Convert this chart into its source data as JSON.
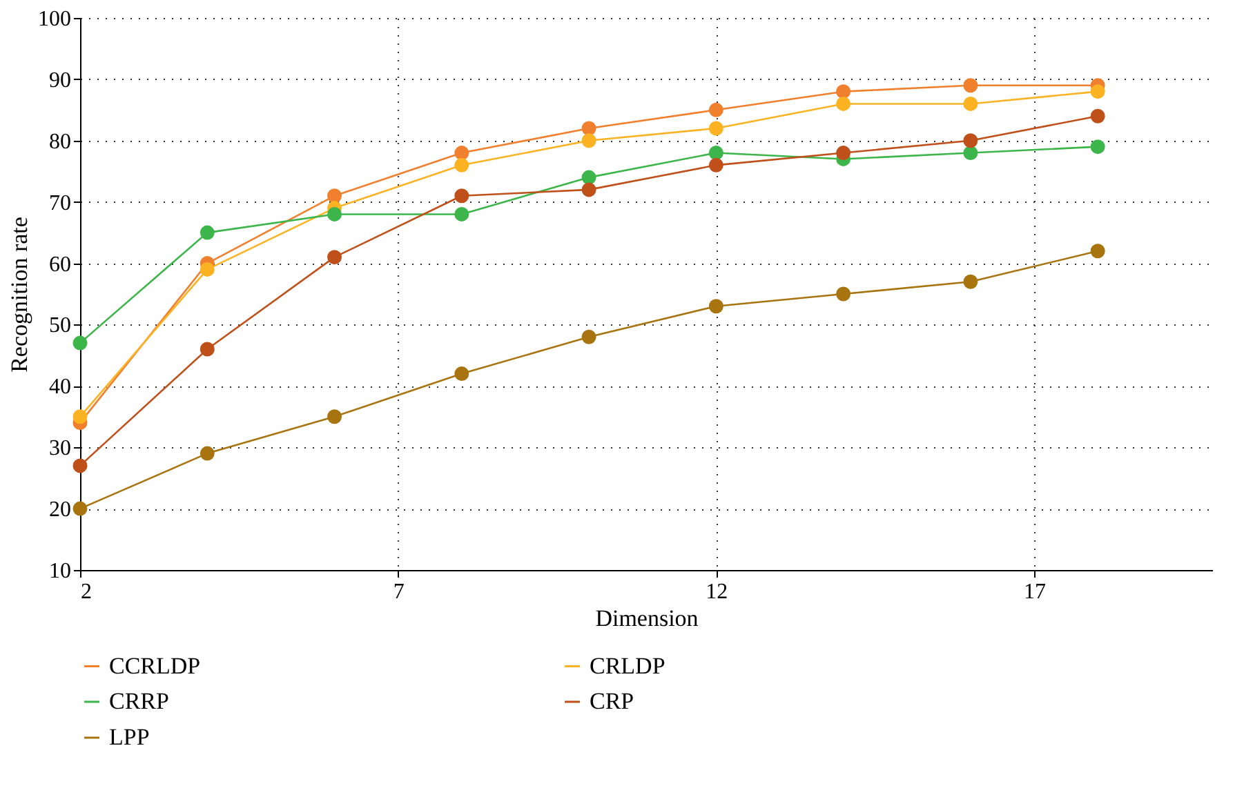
{
  "chart_data": {
    "type": "line",
    "xlabel": "Dimension",
    "ylabel": "Recognition rate",
    "x": [
      2,
      4,
      6,
      8,
      10,
      12,
      14,
      16,
      18
    ],
    "series": [
      {
        "name": "CCRLDP",
        "color": "#f07f2e",
        "values": [
          34,
          60,
          71,
          78,
          82,
          85,
          88,
          89,
          89
        ]
      },
      {
        "name": "CRLDP",
        "color": "#fbb323",
        "values": [
          35,
          59,
          69,
          76,
          80,
          82,
          86,
          86,
          88
        ]
      },
      {
        "name": "CRRP",
        "color": "#3cb54a",
        "values": [
          47,
          65,
          68,
          68,
          74,
          78,
          77,
          78,
          79
        ]
      },
      {
        "name": "CRP",
        "color": "#c0501a",
        "values": [
          27,
          46,
          61,
          71,
          72,
          76,
          78,
          80,
          84
        ]
      },
      {
        "name": "LPP",
        "color": "#a8740f",
        "values": [
          20,
          29,
          35,
          42,
          48,
          53,
          55,
          57,
          62
        ]
      }
    ],
    "xlim": [
      2,
      19.8
    ],
    "xticks": [
      2,
      7,
      12,
      17
    ],
    "ylim": [
      10,
      100
    ],
    "yticks": [
      10,
      20,
      30,
      40,
      50,
      60,
      70,
      80,
      90,
      100
    ],
    "grid": true,
    "legend": "bottom",
    "marker": "circle",
    "line_style": "solid"
  }
}
